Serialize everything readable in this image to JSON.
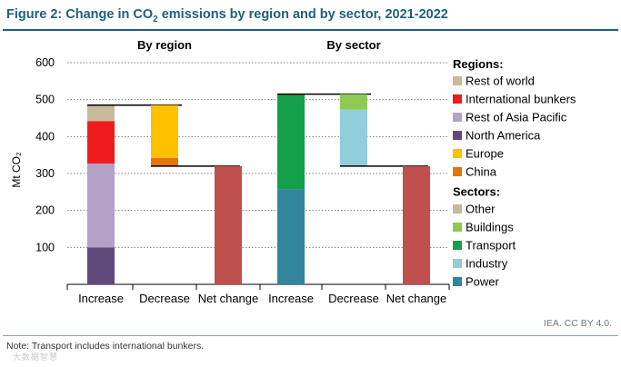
{
  "figure": {
    "title_prefix": "Figure 2: Change in CO",
    "title_sub": "2",
    "title_suffix": " emissions by region and by sector, 2021-2022",
    "source": "IEA. CC BY 4.0.",
    "note": "Note: Transport includes international bunkers.",
    "watermark": "大数据智慧"
  },
  "chart_data": [
    {
      "type": "waterfall",
      "title": "By region",
      "ylabel": "Mt CO₂",
      "ylim": [
        0,
        600
      ],
      "y_ticks": [
        100,
        200,
        300,
        400,
        500,
        600
      ],
      "categories": [
        "Increase",
        "Decrease",
        "Net change"
      ],
      "increase": [
        {
          "name": "North America",
          "value": 100
        },
        {
          "name": "Rest of Asia Pacific",
          "value": 227
        },
        {
          "name": "International bunkers",
          "value": 115
        },
        {
          "name": "Rest of world",
          "value": 43
        }
      ],
      "increase_total": 485,
      "decrease": [
        {
          "name": "China",
          "value": 22
        },
        {
          "name": "Europe",
          "value": 143
        }
      ],
      "net_change": 320
    },
    {
      "type": "waterfall",
      "title": "By sector",
      "ylim": [
        0,
        600
      ],
      "y_ticks": [
        100,
        200,
        300,
        400,
        500,
        600
      ],
      "categories": [
        "Increase",
        "Decrease",
        "Net change"
      ],
      "increase": [
        {
          "name": "Power",
          "value": 258
        },
        {
          "name": "Transport",
          "value": 257
        }
      ],
      "increase_total": 515,
      "decrease": [
        {
          "name": "Industry",
          "value": 153
        },
        {
          "name": "Buildings",
          "value": 42
        }
      ],
      "net_change": 320
    }
  ],
  "legend": {
    "regions_title": "Regions:",
    "regions": [
      {
        "name": "Rest of world",
        "color": "#c8b99a"
      },
      {
        "name": "International bunkers",
        "color": "#ee1c1c"
      },
      {
        "name": "Rest of Asia Pacific",
        "color": "#b3a2c7"
      },
      {
        "name": "North America",
        "color": "#604a7b"
      },
      {
        "name": "Europe",
        "color": "#ffc000"
      },
      {
        "name": "China",
        "color": "#e2750f"
      }
    ],
    "sectors_title": "Sectors:",
    "sectors": [
      {
        "name": "Other",
        "color": "#c8b99a"
      },
      {
        "name": "Buildings",
        "color": "#8dc955"
      },
      {
        "name": "Transport",
        "color": "#14a04a"
      },
      {
        "name": "Industry",
        "color": "#92cddc"
      },
      {
        "name": "Power",
        "color": "#31859c"
      }
    ]
  },
  "colors": {
    "title": "#1f5f7d",
    "net_change": "#c0504d",
    "connector": "#000000",
    "gridline": "#808080"
  }
}
